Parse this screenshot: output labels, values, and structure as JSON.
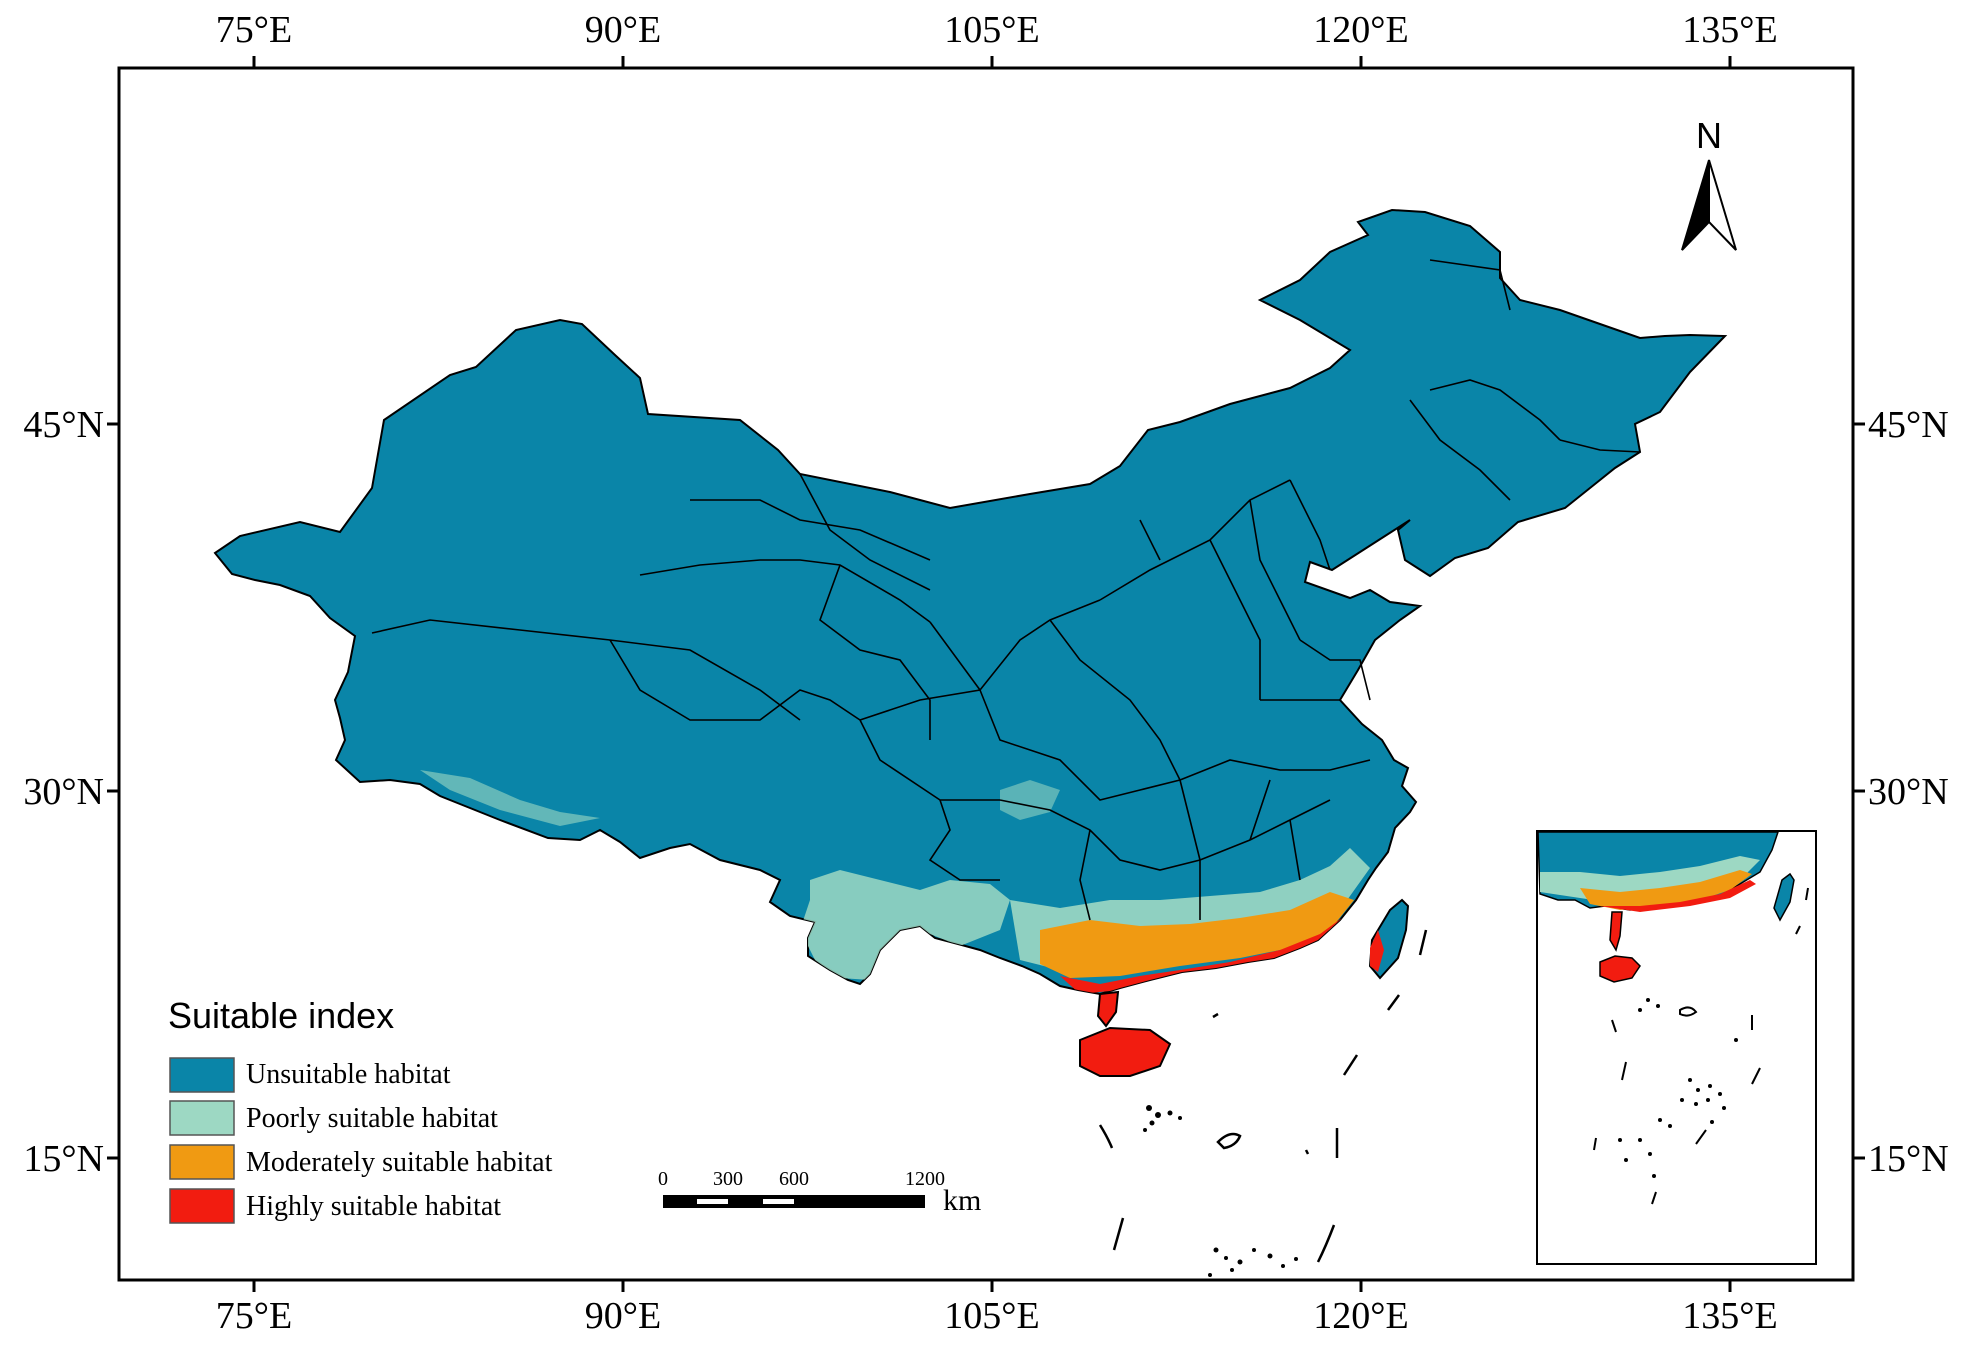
{
  "map": {
    "x_ticks": [
      "75°E",
      "90°E",
      "105°E",
      "120°E",
      "135°E"
    ],
    "y_ticks": [
      "45°N",
      "30°N",
      "15°N"
    ],
    "north_label": "N",
    "legend": {
      "title": "Suitable index",
      "items": [
        {
          "label": "Unsuitable habitat",
          "color": "#0a85a8"
        },
        {
          "label": "Poorly suitable habitat",
          "color": "#9dd8c3"
        },
        {
          "label": "Moderately suitable habitat",
          "color": "#f09a12"
        },
        {
          "label": "Highly suitable habitat",
          "color": "#f21c10"
        }
      ]
    },
    "scale_bar": {
      "labels": [
        "0",
        "300",
        "600",
        "1200"
      ],
      "unit": "km"
    },
    "colors": {
      "unsuitable": "#0a85a8",
      "poor": "#9dd8c3",
      "moderate": "#f09a12",
      "high": "#f21c10"
    }
  }
}
